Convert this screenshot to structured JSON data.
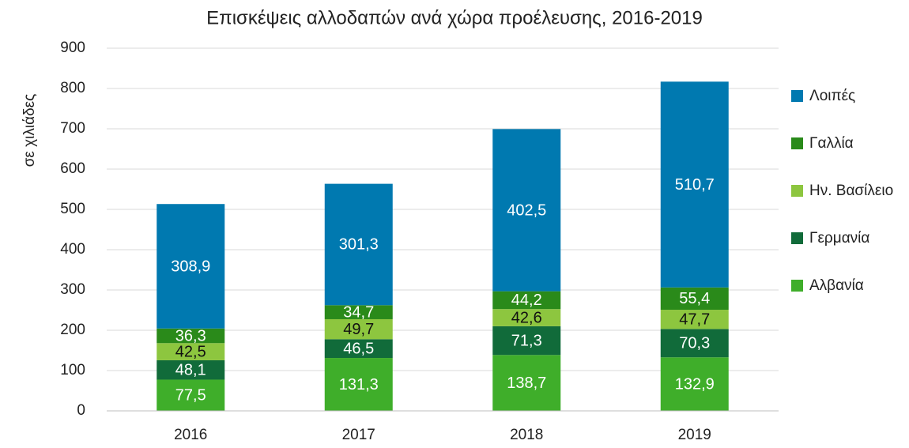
{
  "chart_data": {
    "type": "stacked_bar",
    "title": "Επισκέψεις αλλοδαπών ανά χώρα προέλευσης, 2016-2019",
    "y_label": "σε χιλιάδες",
    "categories": [
      "2016",
      "2017",
      "2018",
      "2019"
    ],
    "series": [
      {
        "name": "Αλβανία",
        "color": "#3fae2a",
        "label_color": "#ffffff",
        "values": [
          77.5,
          131.3,
          138.7,
          132.9
        ],
        "value_labels": [
          "77,5",
          "131,3",
          "138,7",
          "132,9"
        ]
      },
      {
        "name": "Γερμανία",
        "color": "#116b3a",
        "label_color": "#ffffff",
        "values": [
          48.1,
          46.5,
          71.3,
          70.3
        ],
        "value_labels": [
          "48,1",
          "46,5",
          "71,3",
          "70,3"
        ]
      },
      {
        "name": "Ην. Βασίλειο",
        "color": "#8dc63f",
        "label_color": "#111111",
        "values": [
          42.5,
          49.7,
          42.6,
          47.7
        ],
        "value_labels": [
          "42,5",
          "49,7",
          "42,6",
          "47,7"
        ]
      },
      {
        "name": "Γαλλία",
        "color": "#2a8a1a",
        "label_color": "#ffffff",
        "values": [
          36.3,
          34.7,
          44.2,
          55.4
        ],
        "value_labels": [
          "36,3",
          "34,7",
          "44,2",
          "55,4"
        ]
      },
      {
        "name": "Λοιπές",
        "color": "#0079b0",
        "label_color": "#ffffff",
        "values": [
          308.9,
          301.3,
          402.5,
          510.7
        ],
        "value_labels": [
          "308,9",
          "301,3",
          "402,5",
          "510,7"
        ]
      }
    ],
    "ylim": [
      0,
      900
    ],
    "yticks": [
      0,
      100,
      200,
      300,
      400,
      500,
      600,
      700,
      800,
      900
    ],
    "grid": true,
    "legend": "right"
  }
}
